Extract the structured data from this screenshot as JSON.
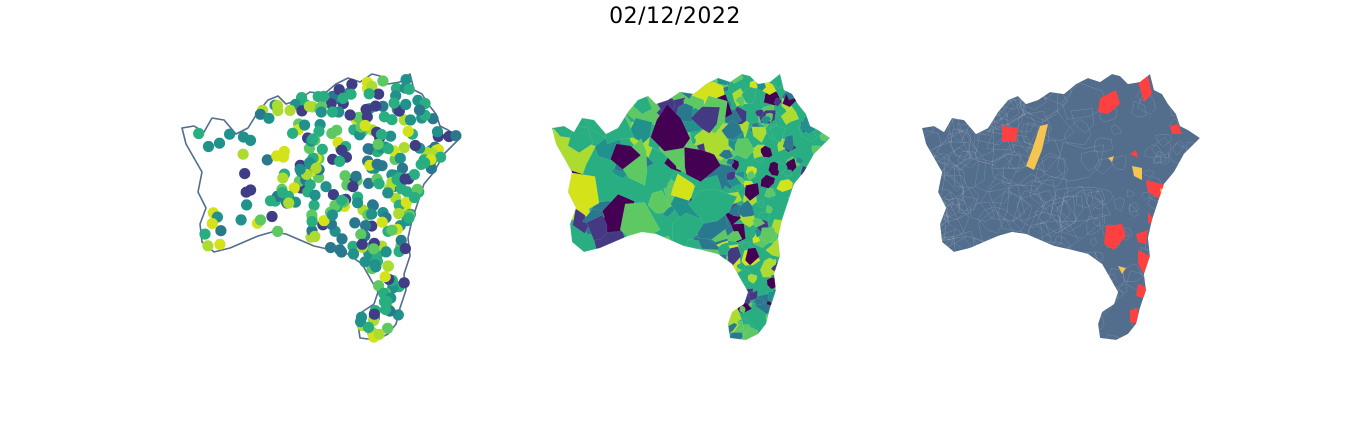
{
  "title": "02/12/2022",
  "colors": {
    "outline": "#536d8c",
    "viridis": [
      "#3e3d86",
      "#443a83",
      "#2a788e",
      "#21918c",
      "#28ae80",
      "#5ec962",
      "#addc30",
      "#d4e21a",
      "#440154"
    ],
    "background_map": "#536d8c",
    "highlight_red": "#ff4040",
    "highlight_yellow": "#f5c451"
  },
  "panels": [
    {
      "kind": "points-map"
    },
    {
      "kind": "choropleth-map"
    },
    {
      "kind": "highlight-map"
    }
  ]
}
